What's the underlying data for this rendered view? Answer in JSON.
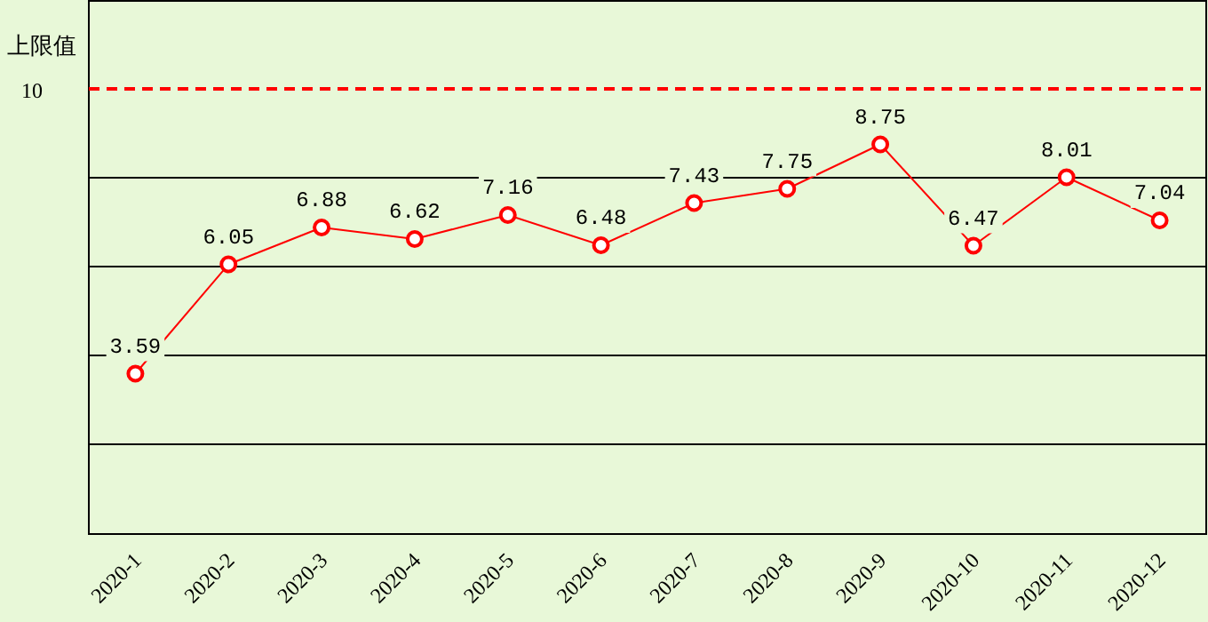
{
  "chart_data": {
    "type": "line",
    "ylabel": "上限值",
    "categories": [
      "2020-1",
      "2020-2",
      "2020-3",
      "2020-4",
      "2020-5",
      "2020-6",
      "2020-7",
      "2020-8",
      "2020-9",
      "2020-10",
      "2020-11",
      "2020-12"
    ],
    "series": [
      {
        "color": "#ff0000",
        "values": [
          3.59,
          6.05,
          6.88,
          6.62,
          7.16,
          6.48,
          7.43,
          7.75,
          8.75,
          6.47,
          8.01,
          7.04
        ]
      }
    ],
    "ylim": [
      0,
      12
    ],
    "yticks": [
      {
        "value": 2,
        "label": null
      },
      {
        "value": 4,
        "label": null
      },
      {
        "value": 6,
        "label": null
      },
      {
        "value": 8,
        "label": null
      }
    ],
    "ref_lines": [
      {
        "axis": "y",
        "value": 10,
        "label": "10",
        "color": "#ff0000",
        "line_style": "dashed"
      }
    ],
    "grid": "y",
    "marker": "circle",
    "line_style": "solid",
    "data_labels": true
  }
}
